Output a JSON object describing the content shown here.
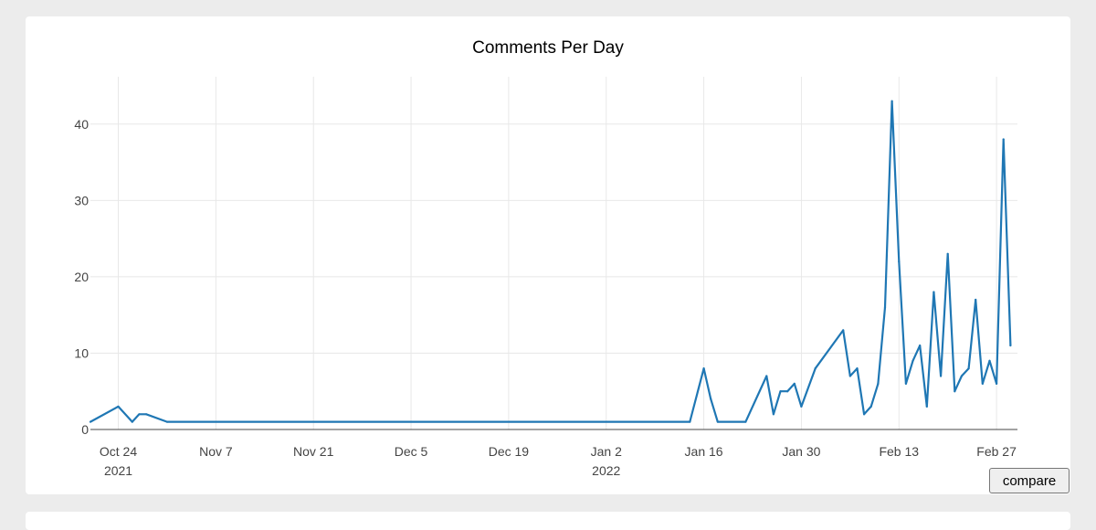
{
  "chart_data": {
    "type": "line",
    "title": "Comments Per Day",
    "xlabel": "",
    "ylabel": "",
    "ylim": [
      0,
      45
    ],
    "xlim": [
      "2021-10-20",
      "2022-03-02"
    ],
    "yticks": [
      0,
      10,
      20,
      30,
      40
    ],
    "xticks": [
      {
        "date": "2021-10-24",
        "label": "Oct 24",
        "sublabel": "2021"
      },
      {
        "date": "2021-11-07",
        "label": "Nov 7",
        "sublabel": ""
      },
      {
        "date": "2021-11-21",
        "label": "Nov 21",
        "sublabel": ""
      },
      {
        "date": "2021-12-05",
        "label": "Dec 5",
        "sublabel": ""
      },
      {
        "date": "2021-12-19",
        "label": "Dec 19",
        "sublabel": ""
      },
      {
        "date": "2022-01-02",
        "label": "Jan 2",
        "sublabel": "2022"
      },
      {
        "date": "2022-01-16",
        "label": "Jan 16",
        "sublabel": ""
      },
      {
        "date": "2022-01-30",
        "label": "Jan 30",
        "sublabel": ""
      },
      {
        "date": "2022-02-13",
        "label": "Feb 13",
        "sublabel": ""
      },
      {
        "date": "2022-02-27",
        "label": "Feb 27",
        "sublabel": ""
      }
    ],
    "grid": true,
    "legend": "none",
    "line_color": "#1f77b4",
    "series": [
      {
        "x": [
          "2021-10-20",
          "2021-10-24",
          "2021-10-26",
          "2021-10-27",
          "2021-10-28",
          "2021-10-31",
          "2022-01-14",
          "2022-01-16",
          "2022-01-17",
          "2022-01-18",
          "2022-01-22",
          "2022-01-25",
          "2022-01-26",
          "2022-01-27",
          "2022-01-28",
          "2022-01-29",
          "2022-01-30",
          "2022-02-01",
          "2022-02-05",
          "2022-02-06",
          "2022-02-07",
          "2022-02-08",
          "2022-02-09",
          "2022-02-10",
          "2022-02-11",
          "2022-02-12",
          "2022-02-13",
          "2022-02-14",
          "2022-02-15",
          "2022-02-16",
          "2022-02-17",
          "2022-02-18",
          "2022-02-19",
          "2022-02-20",
          "2022-02-21",
          "2022-02-22",
          "2022-02-23",
          "2022-02-24",
          "2022-02-25",
          "2022-02-26",
          "2022-02-27",
          "2022-02-28",
          "2022-03-01"
        ],
        "y": [
          1,
          3,
          1,
          2,
          2,
          1,
          1,
          8,
          4,
          1,
          1,
          7,
          2,
          5,
          5,
          6,
          3,
          8,
          13,
          7,
          8,
          2,
          3,
          6,
          16,
          43,
          22,
          6,
          9,
          11,
          3,
          18,
          7,
          23,
          5,
          7,
          8,
          17,
          6,
          9,
          6,
          38,
          11
        ]
      }
    ]
  }
}
